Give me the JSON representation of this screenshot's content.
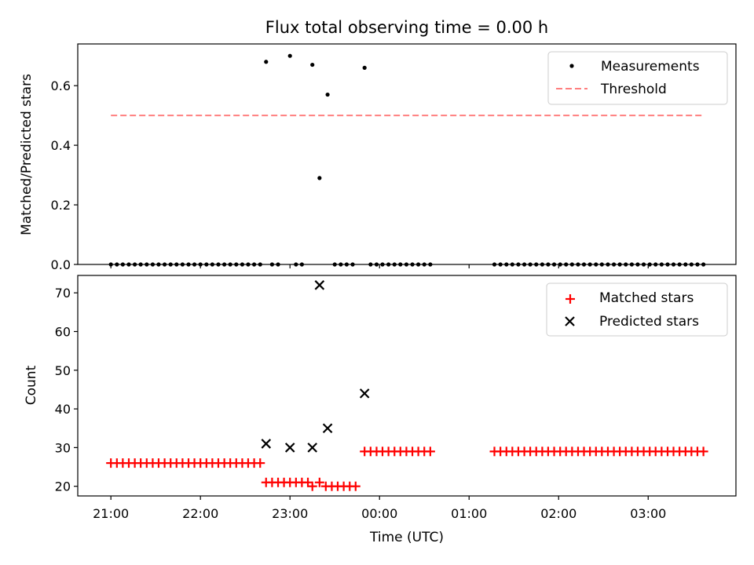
{
  "chart_data": [
    {
      "type": "scatter",
      "title": "Flux total observing time = 0.00 h",
      "xlabel": "",
      "ylabel": "Matched/Predicted stars",
      "xlim": [
        -0.37,
        6.98
      ],
      "ylim": [
        0,
        0.74
      ],
      "yticks": [
        0.0,
        0.2,
        0.4,
        0.6
      ],
      "yticklabels": [
        "0.0",
        "0.2",
        "0.4",
        "0.6"
      ],
      "legend": "top-right",
      "colors": {
        "measurements": "#000000",
        "threshold": "#ff7f7f"
      },
      "series": [
        {
          "name": "Measurements",
          "marker": "dot",
          "points": [
            [
              0.0,
              0
            ],
            [
              0.067,
              0
            ],
            [
              0.133,
              0
            ],
            [
              0.2,
              0
            ],
            [
              0.267,
              0
            ],
            [
              0.333,
              0
            ],
            [
              0.4,
              0
            ],
            [
              0.467,
              0
            ],
            [
              0.533,
              0
            ],
            [
              0.6,
              0
            ],
            [
              0.667,
              0
            ],
            [
              0.733,
              0
            ],
            [
              0.8,
              0
            ],
            [
              0.867,
              0
            ],
            [
              0.933,
              0
            ],
            [
              1.0,
              0
            ],
            [
              1.067,
              0
            ],
            [
              1.133,
              0
            ],
            [
              1.2,
              0
            ],
            [
              1.267,
              0
            ],
            [
              1.333,
              0
            ],
            [
              1.4,
              0
            ],
            [
              1.467,
              0
            ],
            [
              1.533,
              0
            ],
            [
              1.6,
              0
            ],
            [
              1.667,
              0
            ],
            [
              1.733,
              0.68
            ],
            [
              1.8,
              0
            ],
            [
              1.867,
              0
            ],
            [
              2.0,
              0.7
            ],
            [
              2.067,
              0
            ],
            [
              2.133,
              0
            ],
            [
              2.25,
              0.67
            ],
            [
              2.33,
              0.29
            ],
            [
              2.42,
              0.57
            ],
            [
              2.5,
              0
            ],
            [
              2.567,
              0
            ],
            [
              2.633,
              0
            ],
            [
              2.7,
              0
            ],
            [
              2.833,
              0.66
            ],
            [
              2.9,
              0
            ],
            [
              2.967,
              0
            ],
            [
              3.033,
              0
            ],
            [
              3.1,
              0
            ],
            [
              3.167,
              0
            ],
            [
              3.233,
              0
            ],
            [
              3.3,
              0
            ],
            [
              3.367,
              0
            ],
            [
              3.433,
              0
            ],
            [
              3.5,
              0
            ],
            [
              3.567,
              0
            ],
            [
              4.283,
              0
            ],
            [
              4.35,
              0
            ],
            [
              4.417,
              0
            ],
            [
              4.483,
              0
            ],
            [
              4.55,
              0
            ],
            [
              4.617,
              0
            ],
            [
              4.683,
              0
            ],
            [
              4.75,
              0
            ],
            [
              4.817,
              0
            ],
            [
              4.883,
              0
            ],
            [
              4.95,
              0
            ],
            [
              5.017,
              0
            ],
            [
              5.083,
              0
            ],
            [
              5.15,
              0
            ],
            [
              5.217,
              0
            ],
            [
              5.283,
              0
            ],
            [
              5.35,
              0
            ],
            [
              5.417,
              0
            ],
            [
              5.483,
              0
            ],
            [
              5.55,
              0
            ],
            [
              5.617,
              0
            ],
            [
              5.683,
              0
            ],
            [
              5.75,
              0
            ],
            [
              5.817,
              0
            ],
            [
              5.883,
              0
            ],
            [
              5.95,
              0
            ],
            [
              6.017,
              0
            ],
            [
              6.083,
              0
            ],
            [
              6.15,
              0
            ],
            [
              6.217,
              0
            ],
            [
              6.283,
              0
            ],
            [
              6.35,
              0
            ],
            [
              6.417,
              0
            ],
            [
              6.483,
              0
            ],
            [
              6.55,
              0
            ],
            [
              6.617,
              0
            ]
          ]
        },
        {
          "name": "Threshold",
          "marker": "dashed-line",
          "points": [
            [
              0.0,
              0.5
            ],
            [
              6.63,
              0.5
            ]
          ]
        }
      ]
    },
    {
      "type": "scatter",
      "title": "",
      "xlabel": "Time (UTC)",
      "ylabel": "Count",
      "xlim": [
        -0.37,
        6.98
      ],
      "ylim": [
        17.5,
        74.5
      ],
      "xticks": [
        0,
        1,
        2,
        3,
        4,
        5,
        6
      ],
      "xticklabels": [
        "21:00",
        "22:00",
        "23:00",
        "00:00",
        "01:00",
        "02:00",
        "03:00"
      ],
      "yticks": [
        20,
        30,
        40,
        50,
        60,
        70
      ],
      "yticklabels": [
        "20",
        "30",
        "40",
        "50",
        "60",
        "70"
      ],
      "legend": "top-right",
      "colors": {
        "matched": "#ff0000",
        "predicted": "#000000"
      },
      "series": [
        {
          "name": "Matched stars",
          "marker": "plus",
          "points": [
            [
              0.0,
              26
            ],
            [
              0.067,
              26
            ],
            [
              0.133,
              26
            ],
            [
              0.2,
              26
            ],
            [
              0.267,
              26
            ],
            [
              0.333,
              26
            ],
            [
              0.4,
              26
            ],
            [
              0.467,
              26
            ],
            [
              0.533,
              26
            ],
            [
              0.6,
              26
            ],
            [
              0.667,
              26
            ],
            [
              0.733,
              26
            ],
            [
              0.8,
              26
            ],
            [
              0.867,
              26
            ],
            [
              0.933,
              26
            ],
            [
              1.0,
              26
            ],
            [
              1.067,
              26
            ],
            [
              1.133,
              26
            ],
            [
              1.2,
              26
            ],
            [
              1.267,
              26
            ],
            [
              1.333,
              26
            ],
            [
              1.4,
              26
            ],
            [
              1.467,
              26
            ],
            [
              1.533,
              26
            ],
            [
              1.6,
              26
            ],
            [
              1.667,
              26
            ],
            [
              1.733,
              21
            ],
            [
              1.8,
              21
            ],
            [
              1.867,
              21
            ],
            [
              1.933,
              21
            ],
            [
              2.0,
              21
            ],
            [
              2.067,
              21
            ],
            [
              2.133,
              21
            ],
            [
              2.2,
              21
            ],
            [
              2.25,
              20
            ],
            [
              2.33,
              21
            ],
            [
              2.4,
              20
            ],
            [
              2.467,
              20
            ],
            [
              2.533,
              20
            ],
            [
              2.6,
              20
            ],
            [
              2.667,
              20
            ],
            [
              2.733,
              20
            ],
            [
              2.833,
              29
            ],
            [
              2.9,
              29
            ],
            [
              2.967,
              29
            ],
            [
              3.033,
              29
            ],
            [
              3.1,
              29
            ],
            [
              3.167,
              29
            ],
            [
              3.233,
              29
            ],
            [
              3.3,
              29
            ],
            [
              3.367,
              29
            ],
            [
              3.433,
              29
            ],
            [
              3.5,
              29
            ],
            [
              3.567,
              29
            ],
            [
              4.283,
              29
            ],
            [
              4.35,
              29
            ],
            [
              4.417,
              29
            ],
            [
              4.483,
              29
            ],
            [
              4.55,
              29
            ],
            [
              4.617,
              29
            ],
            [
              4.683,
              29
            ],
            [
              4.75,
              29
            ],
            [
              4.817,
              29
            ],
            [
              4.883,
              29
            ],
            [
              4.95,
              29
            ],
            [
              5.017,
              29
            ],
            [
              5.083,
              29
            ],
            [
              5.15,
              29
            ],
            [
              5.217,
              29
            ],
            [
              5.283,
              29
            ],
            [
              5.35,
              29
            ],
            [
              5.417,
              29
            ],
            [
              5.483,
              29
            ],
            [
              5.55,
              29
            ],
            [
              5.617,
              29
            ],
            [
              5.683,
              29
            ],
            [
              5.75,
              29
            ],
            [
              5.817,
              29
            ],
            [
              5.883,
              29
            ],
            [
              5.95,
              29
            ],
            [
              6.017,
              29
            ],
            [
              6.083,
              29
            ],
            [
              6.15,
              29
            ],
            [
              6.217,
              29
            ],
            [
              6.283,
              29
            ],
            [
              6.35,
              29
            ],
            [
              6.417,
              29
            ],
            [
              6.483,
              29
            ],
            [
              6.55,
              29
            ],
            [
              6.617,
              29
            ]
          ]
        },
        {
          "name": "Predicted stars",
          "marker": "x",
          "points": [
            [
              1.733,
              31
            ],
            [
              2.0,
              30
            ],
            [
              2.25,
              30
            ],
            [
              2.33,
              72
            ],
            [
              2.42,
              35
            ],
            [
              2.833,
              44
            ]
          ]
        }
      ]
    }
  ]
}
